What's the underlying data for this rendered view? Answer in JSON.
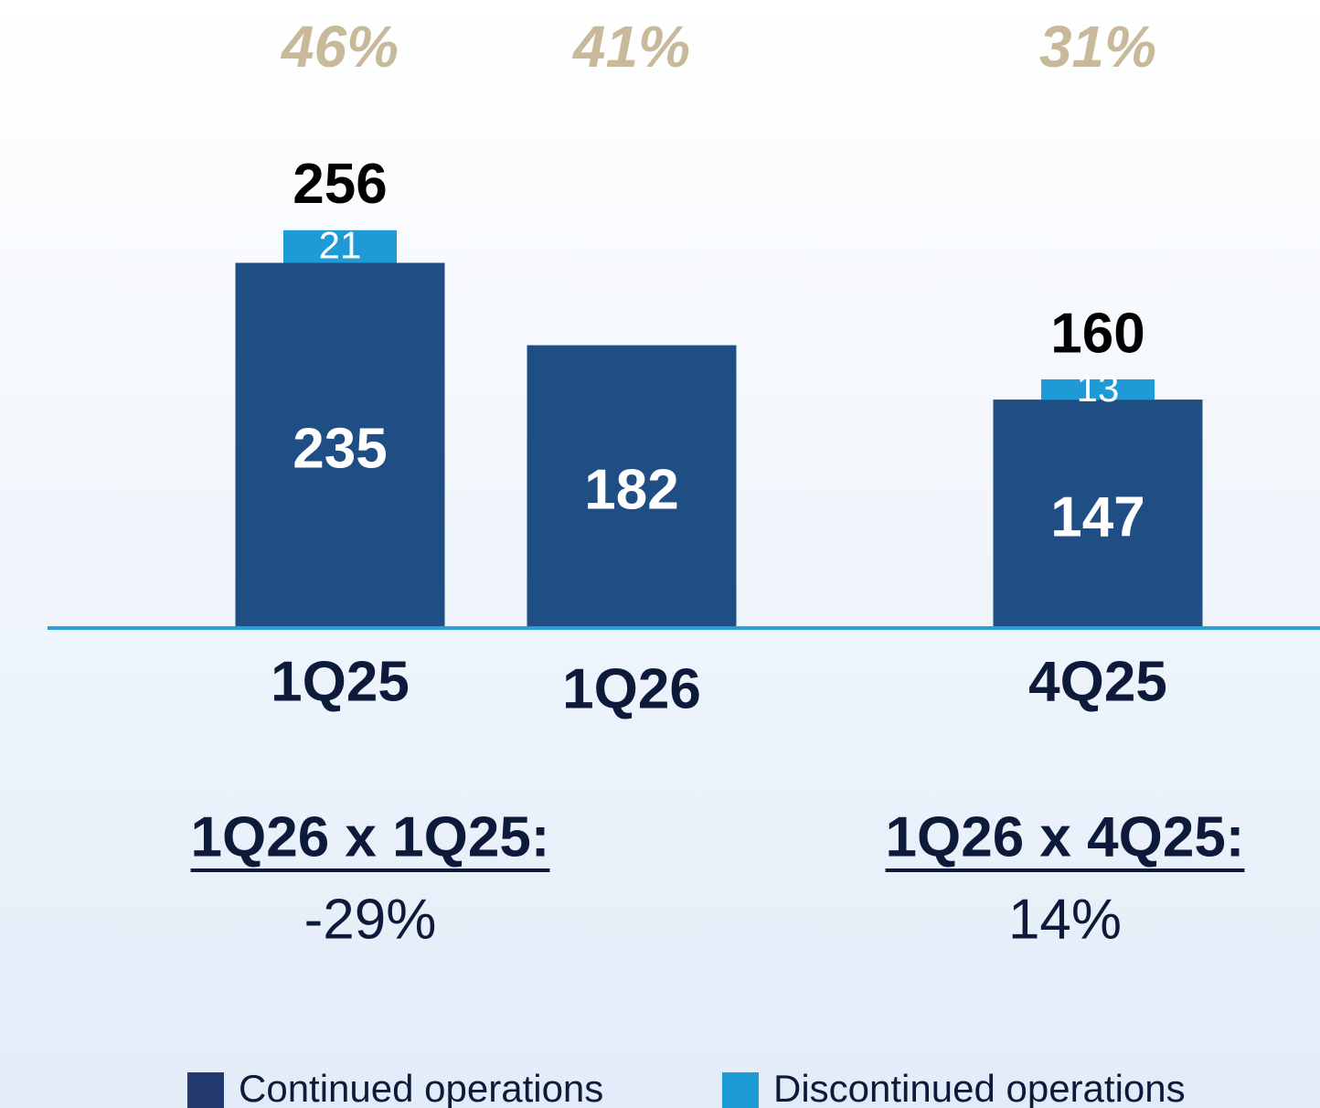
{
  "chart_data": {
    "type": "bar",
    "stacked": true,
    "categories": [
      "1Q25",
      "1Q26",
      "4Q25"
    ],
    "series": [
      {
        "name": "Continued operations",
        "color": "#1f4e85",
        "values": [
          235,
          182,
          147
        ]
      },
      {
        "name": "Discontinued operations",
        "color": "#1e9ad6",
        "values": [
          21,
          null,
          13
        ]
      }
    ],
    "totals": [
      256,
      null,
      160
    ],
    "ylim": [
      0,
      300
    ],
    "margins": {
      "values": [
        46,
        41,
        31
      ],
      "value_labels": [
        "46%",
        "41%",
        "31%"
      ],
      "color": "#c8b99a"
    },
    "comparisons": [
      {
        "label": "1Q26 x 1Q25:",
        "value": -29,
        "value_label": "-29%"
      },
      {
        "label": "1Q26 x 4Q25:",
        "value": 14,
        "value_label": "14%"
      }
    ]
  }
}
